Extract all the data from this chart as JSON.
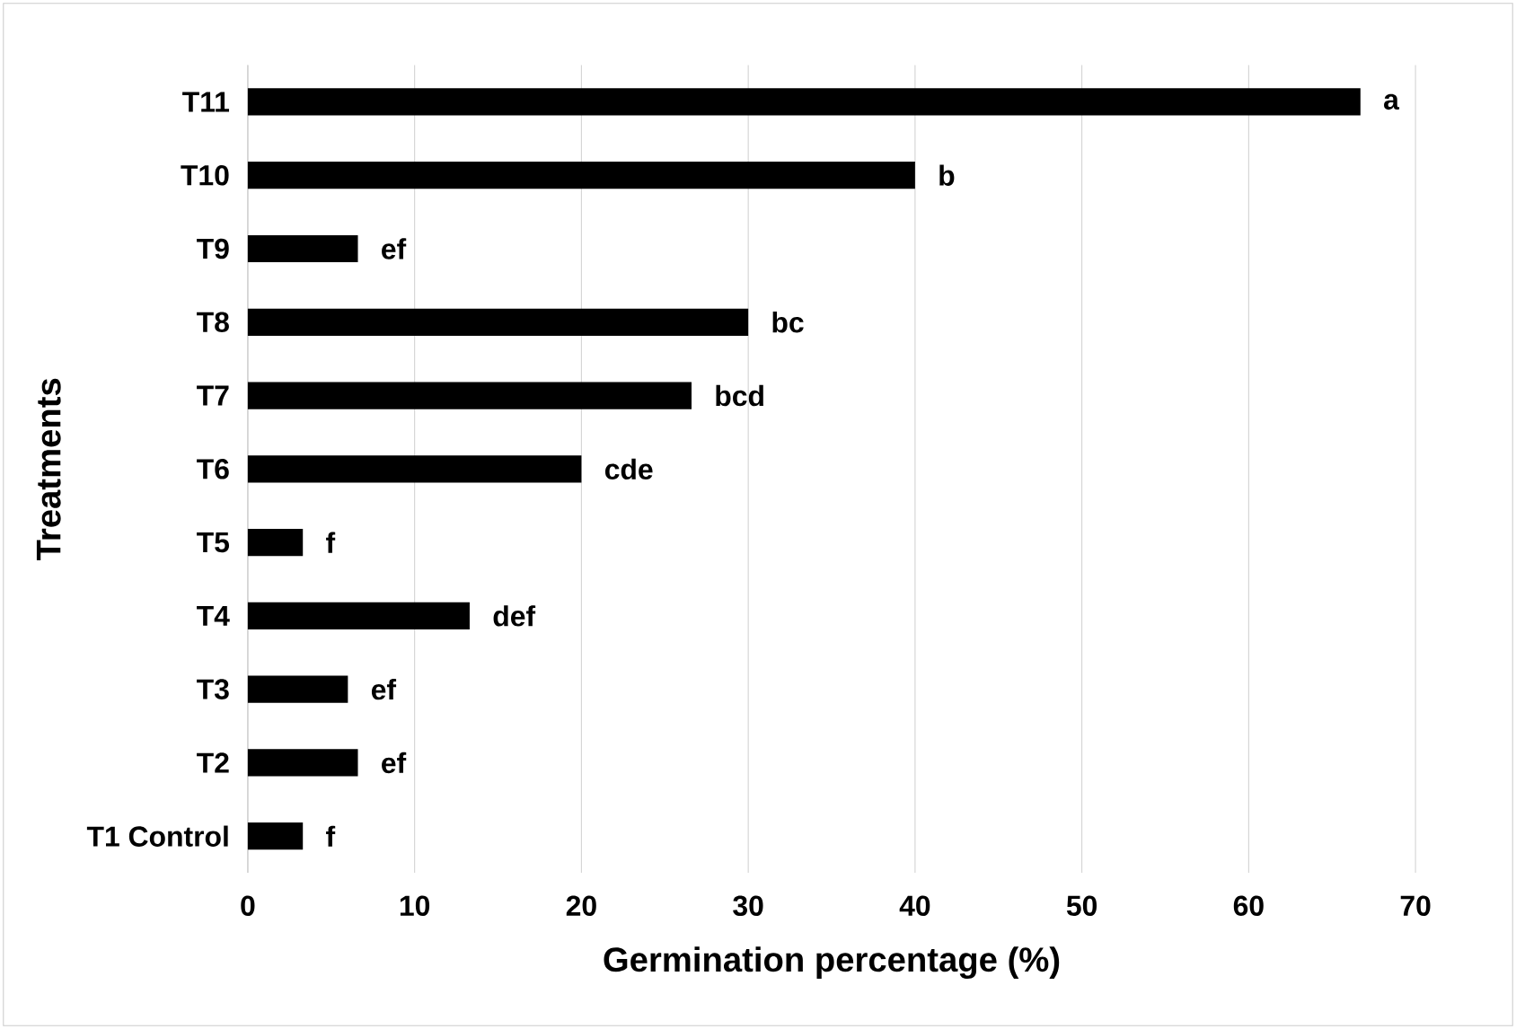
{
  "chart_data": {
    "type": "bar",
    "orientation": "horizontal",
    "xlabel": "Germination percentage (%)",
    "ylabel": "Treatments",
    "categories": [
      "T11",
      "T10",
      "T9",
      "T8",
      "T7",
      "T6",
      "T5",
      "T4",
      "T3",
      "T2",
      "T1 Control"
    ],
    "values": [
      66.7,
      40,
      6.6,
      30,
      26.6,
      20,
      3.3,
      13.3,
      6.0,
      6.6,
      3.3
    ],
    "color": "#000000",
    "xlim": [
      0,
      70
    ],
    "xticks": [
      0,
      10,
      20,
      30,
      40,
      50,
      60,
      70
    ],
    "grid": "x",
    "annotations": [
      {
        "text": "a",
        "x": 66.7,
        "y": "T11"
      },
      {
        "text": "b",
        "x": 40,
        "y": "T10"
      },
      {
        "text": "ef",
        "x": 6.6,
        "y": "T9"
      },
      {
        "text": "bc",
        "x": 30,
        "y": "T8"
      },
      {
        "text": "bcd",
        "x": 26.6,
        "y": "T7"
      },
      {
        "text": "cde",
        "x": 20,
        "y": "T6"
      },
      {
        "text": "f",
        "x": 3.3,
        "y": "T5"
      },
      {
        "text": "def",
        "x": 13.3,
        "y": "T4"
      },
      {
        "text": "ef",
        "x": 6.0,
        "y": "T3"
      },
      {
        "text": "ef",
        "x": 6.6,
        "y": "T2"
      },
      {
        "text": "f",
        "x": 3.3,
        "y": "T1 Control"
      }
    ]
  }
}
